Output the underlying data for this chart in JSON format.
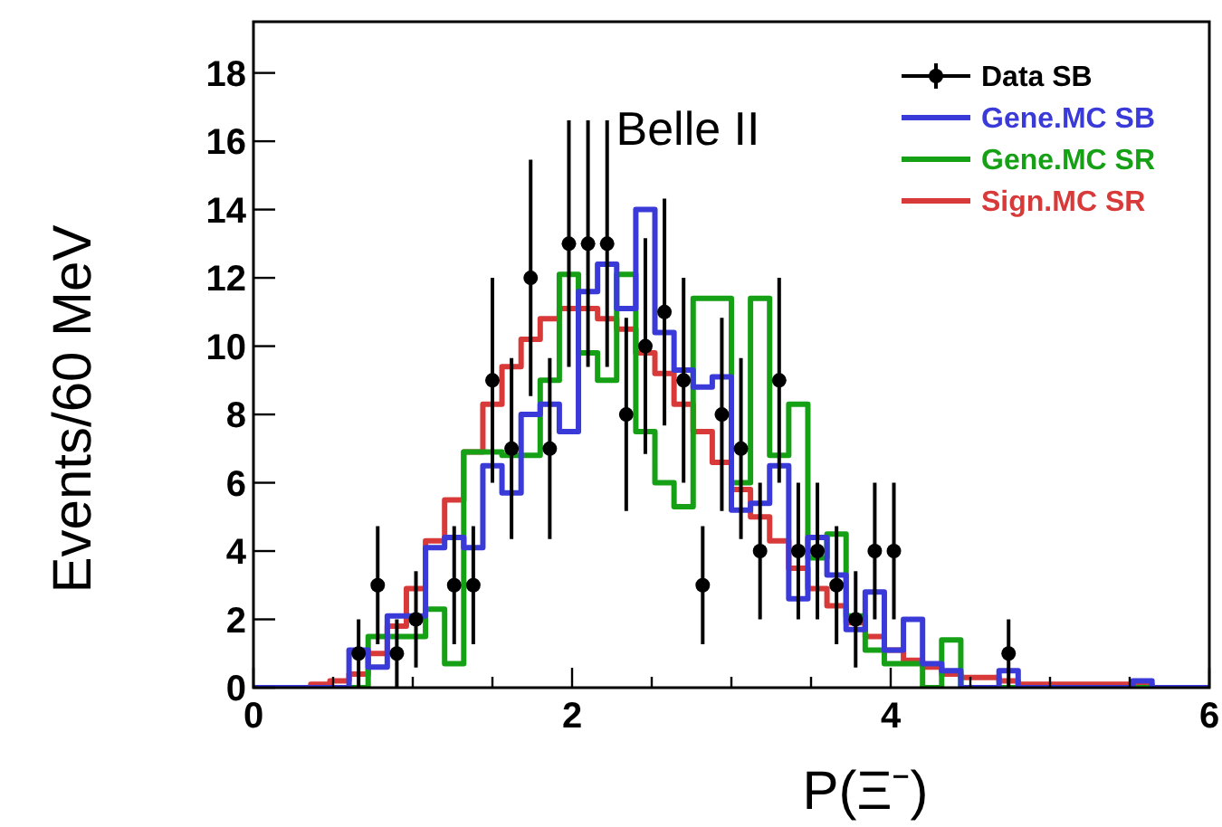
{
  "chart_data": {
    "type": "histogram",
    "xlabel": "P(Ξ⁻)",
    "ylabel": "Events/60 MeV",
    "annotations": [
      "Belle II"
    ],
    "bins": [
      0,
      0.12,
      0.24,
      0.36,
      0.48,
      0.6,
      0.72,
      0.84,
      0.96,
      1.08,
      1.2,
      1.32,
      1.44,
      1.56,
      1.68,
      1.8,
      1.92,
      2.04,
      2.16,
      2.28,
      2.4,
      2.52,
      2.64,
      2.76,
      2.88,
      3,
      3.12,
      3.24,
      3.36,
      3.48,
      3.6,
      3.72,
      3.84,
      3.96,
      4.08,
      4.2,
      4.32,
      4.44,
      4.56,
      4.68,
      4.8,
      4.92,
      5.04,
      5.16,
      5.28,
      5.4,
      5.52,
      5.64,
      5.76,
      5.88,
      6
    ],
    "xlim": [
      0,
      6
    ],
    "ylim": [
      0,
      19.5
    ],
    "xticks": [
      0,
      {
        "value": 0.5,
        "label": null
      },
      {
        "value": 1,
        "label": null
      },
      {
        "value": 1.5,
        "label": null
      },
      2,
      {
        "value": 2.5,
        "label": null
      },
      {
        "value": 3,
        "label": null
      },
      {
        "value": 3.5,
        "label": null
      },
      4,
      {
        "value": 4.5,
        "label": null
      },
      {
        "value": 5,
        "label": null
      },
      {
        "value": 5.5,
        "label": null
      },
      6
    ],
    "yticks": [
      0,
      2,
      4,
      6,
      8,
      10,
      12,
      14,
      16,
      18
    ],
    "legend": "top right",
    "grid": false,
    "series": [
      {
        "name": "Data SB",
        "type": "scatter",
        "color": "#000000",
        "marker": "circle",
        "x": [
          0.66,
          0.78,
          0.9,
          1.02,
          1.26,
          1.38,
          1.5,
          1.62,
          1.74,
          1.86,
          1.98,
          2.1,
          2.22,
          2.34,
          2.46,
          2.58,
          2.7,
          2.82,
          2.94,
          3.06,
          3.18,
          3.3,
          3.42,
          3.54,
          3.66,
          3.78,
          3.9,
          4.02,
          4.74
        ],
        "values": [
          1,
          3,
          1,
          2,
          3,
          3,
          9,
          7,
          12,
          7,
          13,
          13,
          13,
          8,
          10,
          11,
          9,
          3,
          8,
          7,
          4,
          9,
          4,
          4,
          3,
          2,
          4,
          4,
          1
        ],
        "errors": [
          1,
          1.73,
          1,
          1.41,
          1.73,
          1.73,
          3,
          2.65,
          3.46,
          2.65,
          3.61,
          3.61,
          3.61,
          2.83,
          3.16,
          3.32,
          3,
          1.73,
          2.83,
          2.65,
          2,
          3,
          2,
          2,
          1.73,
          1.41,
          2,
          2,
          1
        ]
      },
      {
        "name": "Gene.MC SB",
        "color": "#3a3ad8",
        "values": [
          0,
          0,
          0,
          0,
          0,
          1.1,
          0.6,
          2.1,
          2.1,
          4.1,
          4.4,
          4.1,
          6.5,
          5.7,
          8,
          8.3,
          7.5,
          11.6,
          12.4,
          11.1,
          14,
          10.4,
          9.3,
          8.8,
          9.1,
          5.2,
          5.4,
          6.5,
          2.6,
          4.4,
          3.3,
          1.7,
          2.8,
          1.1,
          2,
          0.7,
          0.5,
          0,
          0,
          0.5,
          0,
          0,
          0,
          0,
          0,
          0,
          0.2,
          0,
          0,
          0
        ]
      },
      {
        "name": "Gene.MC SR",
        "color": "#16a016",
        "values": [
          0,
          0,
          0,
          0,
          0,
          0,
          1.5,
          1.5,
          1.5,
          2.3,
          0.7,
          6.9,
          6.9,
          6.8,
          6.8,
          9,
          12.1,
          9.8,
          9,
          12.1,
          7.5,
          6,
          5.3,
          11.4,
          11.4,
          6,
          11.4,
          6.8,
          8.3,
          3.8,
          4.5,
          2.1,
          1.1,
          0.7,
          0.7,
          0,
          1.4,
          0,
          0,
          0,
          0,
          0,
          0,
          0,
          0,
          0,
          0,
          0,
          0,
          0
        ]
      },
      {
        "name": "Sign.MC SR",
        "color": "#d83a3a",
        "values": [
          0,
          0,
          0,
          0.1,
          0.2,
          0.4,
          1,
          1.8,
          2.9,
          4.3,
          5.5,
          6.9,
          8.3,
          9.4,
          10.2,
          10.8,
          11.1,
          11.1,
          10.8,
          10.5,
          9.8,
          9.2,
          8.3,
          7.5,
          6.6,
          5.8,
          5,
          4.3,
          3.5,
          2.9,
          2.4,
          1.9,
          1.5,
          1.1,
          0.8,
          0.6,
          0.4,
          0.3,
          0.3,
          0.2,
          0.1,
          0.1,
          0.1,
          0.1,
          0.1,
          0.1,
          0.1,
          0,
          0,
          0
        ]
      }
    ]
  }
}
